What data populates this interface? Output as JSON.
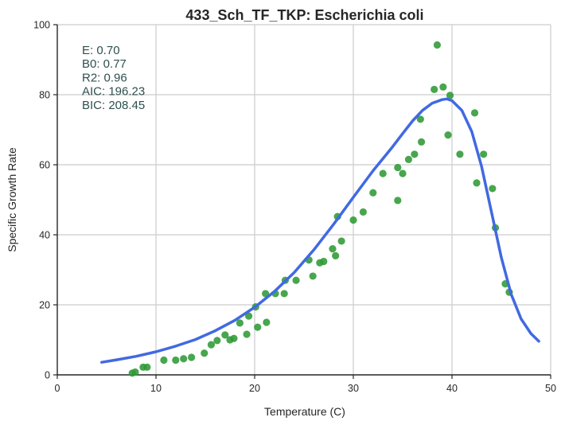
{
  "chart_data": {
    "type": "scatter",
    "title": "433_Sch_TF_TKP: Escherichia coli",
    "xlabel": "Temperature (C)",
    "ylabel": "Specific Growth Rate",
    "xlim": [
      0,
      50
    ],
    "ylim": [
      0,
      100
    ],
    "xticks": [
      0,
      10,
      20,
      30,
      40,
      50
    ],
    "yticks": [
      0,
      20,
      40,
      60,
      80,
      100
    ],
    "grid": true,
    "colors": {
      "points": "#2e9a36",
      "fit": "#4169e1"
    },
    "annotations": [
      "E:  0.70",
      "B0:  0.77",
      "R2:  0.96",
      "AIC: 196.23",
      "BIC: 208.45"
    ],
    "points": [
      [
        7.6,
        0.5
      ],
      [
        7.9,
        0.8
      ],
      [
        8.7,
        2.2
      ],
      [
        9.1,
        2.2
      ],
      [
        10.8,
        4.2
      ],
      [
        12.0,
        4.2
      ],
      [
        12.8,
        4.6
      ],
      [
        13.6,
        5.0
      ],
      [
        14.9,
        6.2
      ],
      [
        15.6,
        8.6
      ],
      [
        16.2,
        9.8
      ],
      [
        17.0,
        11.4
      ],
      [
        17.5,
        10.0
      ],
      [
        17.9,
        10.4
      ],
      [
        18.5,
        14.8
      ],
      [
        19.2,
        11.6
      ],
      [
        19.4,
        16.8
      ],
      [
        20.1,
        19.4
      ],
      [
        20.3,
        13.6
      ],
      [
        21.1,
        23.2
      ],
      [
        21.2,
        15.0
      ],
      [
        22.1,
        23.2
      ],
      [
        23.0,
        23.2
      ],
      [
        23.1,
        27.0
      ],
      [
        24.2,
        27.0
      ],
      [
        25.5,
        32.8
      ],
      [
        25.9,
        28.2
      ],
      [
        26.6,
        32.0
      ],
      [
        27.0,
        32.4
      ],
      [
        27.9,
        36.0
      ],
      [
        28.2,
        34.0
      ],
      [
        28.4,
        45.2
      ],
      [
        28.8,
        38.2
      ],
      [
        30.0,
        44.2
      ],
      [
        31.0,
        46.5
      ],
      [
        32.0,
        52.0
      ],
      [
        33.0,
        57.5
      ],
      [
        34.5,
        49.8
      ],
      [
        34.5,
        59.2
      ],
      [
        35.0,
        57.5
      ],
      [
        35.6,
        61.5
      ],
      [
        36.2,
        63.0
      ],
      [
        36.8,
        73.0
      ],
      [
        36.9,
        66.5
      ],
      [
        38.2,
        81.5
      ],
      [
        38.5,
        94.2
      ],
      [
        39.1,
        82.2
      ],
      [
        39.8,
        79.8
      ],
      [
        39.6,
        68.5
      ],
      [
        40.8,
        63.0
      ],
      [
        42.3,
        74.8
      ],
      [
        42.5,
        54.8
      ],
      [
        43.2,
        63.0
      ],
      [
        44.1,
        53.2
      ],
      [
        44.4,
        42.0
      ],
      [
        45.4,
        26.0
      ],
      [
        45.8,
        23.6
      ]
    ],
    "fit": [
      [
        4.5,
        3.6
      ],
      [
        6,
        4.3
      ],
      [
        8,
        5.3
      ],
      [
        10,
        6.6
      ],
      [
        12,
        8.2
      ],
      [
        14,
        10.1
      ],
      [
        16,
        12.6
      ],
      [
        18,
        15.6
      ],
      [
        20,
        19.3
      ],
      [
        22,
        23.8
      ],
      [
        24,
        29.2
      ],
      [
        26,
        35.7
      ],
      [
        28,
        43.0
      ],
      [
        30,
        50.7
      ],
      [
        32,
        58.3
      ],
      [
        34,
        65.2
      ],
      [
        35,
        68.9
      ],
      [
        36,
        72.5
      ],
      [
        37,
        75.5
      ],
      [
        38,
        77.6
      ],
      [
        39,
        78.6
      ],
      [
        39.5,
        78.8
      ],
      [
        40,
        78.3
      ],
      [
        41,
        75.5
      ],
      [
        42,
        69.5
      ],
      [
        43,
        59.5
      ],
      [
        44,
        46.5
      ],
      [
        45,
        33.5
      ],
      [
        46,
        23.0
      ],
      [
        47,
        16.0
      ],
      [
        48,
        11.8
      ],
      [
        48.8,
        9.6
      ]
    ]
  }
}
